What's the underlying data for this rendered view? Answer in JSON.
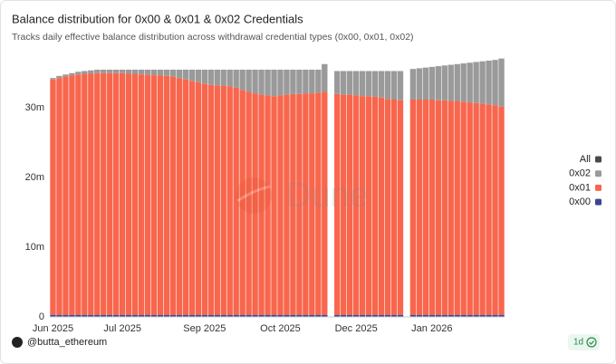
{
  "chart_data": {
    "type": "stacked-bar",
    "title": "Balance distribution for 0x00 & 0x01 & 0x02 Credentials",
    "subtitle": "Tracks daily effective balance distribution across withdrawal credential types (0x00, 0x01, 0x02)",
    "watermark": "Dune",
    "categories": [
      "Jun 2025",
      null,
      null,
      null,
      null,
      null,
      null,
      null,
      null,
      null,
      null,
      "Jul 2025",
      null,
      null,
      null,
      null,
      null,
      null,
      null,
      null,
      null,
      null,
      null,
      null,
      "Sep 2025",
      null,
      null,
      null,
      null,
      null,
      null,
      null,
      null,
      null,
      null,
      null,
      "Oct 2025",
      null,
      null,
      null,
      null,
      null,
      null,
      null,
      null,
      null,
      null,
      null,
      "Dec 2025",
      null,
      null,
      null,
      null,
      null,
      null,
      null,
      null,
      null,
      null,
      null,
      "Jan 2026",
      null,
      null,
      null,
      null,
      null,
      null,
      null,
      null,
      null,
      null,
      null
    ],
    "series": [
      {
        "name": "0x00",
        "color": "#3b4494",
        "values": [
          0.3,
          0.3,
          0.3,
          0.3,
          0.3,
          0.3,
          0.3,
          0.3,
          0.3,
          0.3,
          0.3,
          0.3,
          0.3,
          0.3,
          0.3,
          0.3,
          0.3,
          0.3,
          0.3,
          0.3,
          0.3,
          0.3,
          0.3,
          0.3,
          0.3,
          0.3,
          0.3,
          0.3,
          0.3,
          0.3,
          0.3,
          0.3,
          0.3,
          0.3,
          0.3,
          0.3,
          0.3,
          0.3,
          0.3,
          0.3,
          0.3,
          0.3,
          0.3,
          0.3,
          null,
          0.3,
          0.3,
          0.3,
          0.3,
          0.3,
          0.3,
          0.3,
          0.3,
          0.3,
          0.3,
          0.3,
          null,
          0.3,
          0.3,
          0.3,
          0.3,
          0.3,
          0.3,
          0.3,
          0.3,
          0.3,
          0.3,
          0.3,
          0.3,
          0.3,
          0.3,
          0.3
        ]
      },
      {
        "name": "0x01",
        "color": "#f8664d",
        "values": [
          33.8,
          34.0,
          34.2,
          34.4,
          34.5,
          34.6,
          34.6,
          34.7,
          34.7,
          34.7,
          34.7,
          34.7,
          34.6,
          34.6,
          34.5,
          34.5,
          34.4,
          34.4,
          34.3,
          34.2,
          34.0,
          33.8,
          33.6,
          33.4,
          33.2,
          33.0,
          32.9,
          32.9,
          32.8,
          32.6,
          32.3,
          32.0,
          31.8,
          31.6,
          31.5,
          31.4,
          31.5,
          31.6,
          31.7,
          31.7,
          31.8,
          31.8,
          31.9,
          32.0,
          null,
          31.7,
          31.6,
          31.6,
          31.5,
          31.4,
          31.4,
          31.3,
          31.2,
          31.0,
          30.9,
          30.8,
          null,
          30.9,
          30.9,
          30.9,
          30.9,
          30.8,
          30.8,
          30.7,
          30.7,
          30.6,
          30.5,
          30.4,
          30.3,
          30.2,
          30.1,
          29.9
        ]
      },
      {
        "name": "0x02",
        "color": "#9a9a9a",
        "values": [
          0.2,
          0.3,
          0.3,
          0.3,
          0.4,
          0.4,
          0.5,
          0.5,
          0.5,
          0.5,
          0.5,
          0.5,
          0.6,
          0.6,
          0.7,
          0.7,
          0.8,
          0.8,
          0.9,
          1.0,
          1.2,
          1.4,
          1.6,
          1.8,
          2.0,
          2.2,
          2.3,
          2.3,
          2.4,
          2.6,
          2.9,
          3.2,
          3.4,
          3.6,
          3.7,
          3.8,
          3.7,
          3.6,
          3.5,
          3.5,
          3.4,
          3.4,
          3.3,
          4.0,
          null,
          3.3,
          3.4,
          3.4,
          3.5,
          3.6,
          3.6,
          3.7,
          3.8,
          4.0,
          4.1,
          4.2,
          null,
          4.4,
          4.5,
          4.6,
          4.7,
          4.9,
          5.0,
          5.2,
          5.3,
          5.5,
          5.7,
          5.9,
          6.1,
          6.3,
          6.5,
          6.9
        ]
      },
      {
        "name": "All",
        "color": "#4a4a4a",
        "values": [
          null,
          null,
          null,
          null,
          null,
          null,
          null,
          null,
          null,
          null,
          null,
          null,
          null,
          null,
          null,
          null,
          null,
          null,
          null,
          null,
          null,
          null,
          null,
          null,
          null,
          null,
          null,
          null,
          null,
          null,
          null,
          null,
          null,
          null,
          null,
          null,
          null,
          null,
          null,
          null,
          null,
          null,
          null,
          null,
          null,
          null,
          null,
          null,
          null,
          null,
          null,
          null,
          null,
          null,
          null,
          null,
          null,
          null,
          null,
          null,
          null,
          null,
          null,
          null,
          null,
          null,
          null,
          null,
          null,
          null,
          null,
          null
        ]
      }
    ],
    "ylim": [
      0,
      39
    ],
    "yticks": [
      0,
      {
        "value": 10,
        "label": "10m"
      },
      {
        "value": 20,
        "label": "20m"
      },
      {
        "value": 30,
        "label": "30m"
      }
    ],
    "grid": false,
    "legend": "right"
  },
  "footer": {
    "author": "@butta_ethereum",
    "badge": "1d"
  }
}
